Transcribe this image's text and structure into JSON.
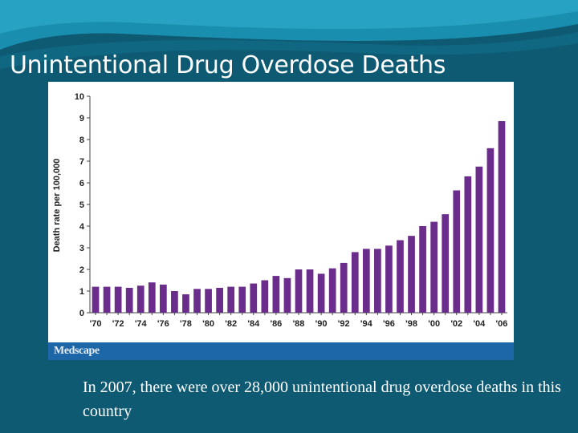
{
  "slide": {
    "title": "Unintentional Drug Overdose Deaths",
    "caption": "In 2007, there were over 28,000 unintentional drug overdose deaths in this country",
    "source_logo": "Medscape",
    "colors": {
      "background": "#0e5a73",
      "bar": "#6b2d8b",
      "footer_bar": "#1d66a8"
    }
  },
  "chart_data": {
    "type": "bar",
    "title": "Unintentional Drug Overdose Deaths",
    "xlabel": "",
    "ylabel": "Death rate per 100,000",
    "ylim": [
      0,
      10
    ],
    "yticks": [
      0,
      1,
      2,
      3,
      4,
      5,
      6,
      7,
      8,
      9,
      10
    ],
    "categories": [
      "1970",
      "1971",
      "1972",
      "1973",
      "1974",
      "1975",
      "1976",
      "1977",
      "1978",
      "1979",
      "1980",
      "1981",
      "1982",
      "1983",
      "1984",
      "1985",
      "1986",
      "1987",
      "1988",
      "1989",
      "1990",
      "1991",
      "1992",
      "1993",
      "1994",
      "1995",
      "1996",
      "1997",
      "1998",
      "1999",
      "2000",
      "2001",
      "2002",
      "2003",
      "2004",
      "2005",
      "2006"
    ],
    "x_tick_labels": [
      "'70",
      "",
      "'72",
      "",
      "'74",
      "",
      "'76",
      "",
      "'78",
      "",
      "'80",
      "",
      "'82",
      "",
      "'84",
      "",
      "'86",
      "",
      "'88",
      "",
      "'90",
      "",
      "'92",
      "",
      "'94",
      "",
      "'96",
      "",
      "'98",
      "",
      "'00",
      "",
      "'02",
      "",
      "'04",
      "",
      "'06"
    ],
    "values": [
      1.2,
      1.2,
      1.2,
      1.15,
      1.25,
      1.4,
      1.3,
      1.0,
      0.85,
      1.1,
      1.1,
      1.15,
      1.2,
      1.2,
      1.35,
      1.5,
      1.7,
      1.6,
      2.0,
      2.0,
      1.8,
      2.05,
      2.3,
      2.8,
      2.95,
      2.95,
      3.1,
      3.35,
      3.55,
      4.0,
      4.2,
      4.55,
      5.65,
      6.3,
      6.75,
      7.6,
      8.85
    ],
    "grid": false,
    "legend": "none"
  }
}
